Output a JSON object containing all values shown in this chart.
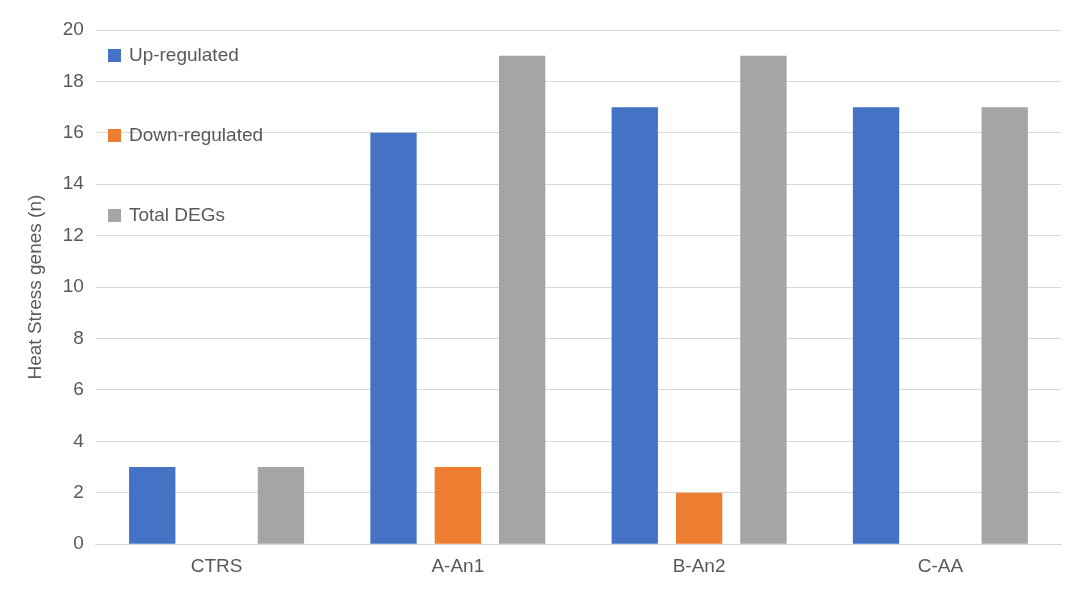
{
  "chart_data": {
    "type": "bar",
    "ylabel": "Heat Stress genes (n)",
    "categories": [
      "CTRS",
      "A-An1",
      "B-An2",
      "C-AA"
    ],
    "series": [
      {
        "name": "Up-regulated",
        "color": "#4472c4",
        "values": [
          3,
          16,
          17,
          17
        ]
      },
      {
        "name": "Down-regulated",
        "color": "#ed7d31",
        "values": [
          0,
          3,
          2,
          0
        ]
      },
      {
        "name": "Total DEGs",
        "color": "#a5a5a5",
        "values": [
          3,
          19,
          19,
          17
        ]
      }
    ],
    "ylim": [
      0,
      20
    ],
    "yticks": [
      0,
      2,
      4,
      6,
      8,
      10,
      12,
      14,
      16,
      18,
      20
    ],
    "grid": "y",
    "legend": "top left"
  }
}
